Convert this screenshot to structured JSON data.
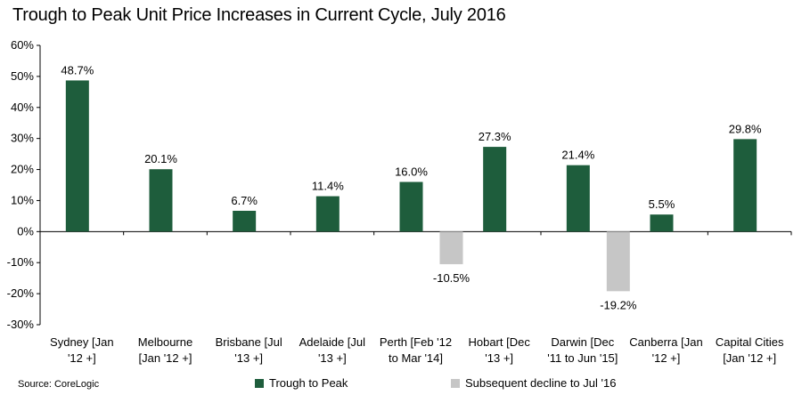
{
  "chart_data": {
    "type": "bar",
    "title": "Trough to Peak Unit Price Increases in Current Cycle, July 2016",
    "categories": [
      [
        "Sydney [Jan",
        "'12 +]"
      ],
      [
        "Melbourne",
        "[Jan '12 +]"
      ],
      [
        "Brisbane [Jul",
        "'13 +]"
      ],
      [
        "Adelaide [Jul",
        "'13 +]"
      ],
      [
        "Perth [Feb '12",
        "to Mar '14]"
      ],
      [
        "Hobart [Dec",
        "'13 +]"
      ],
      [
        "Darwin [Dec",
        "'11 to Jun '15]"
      ],
      [
        "Canberra [Jan",
        "'12 +]"
      ],
      [
        "Capital Cities",
        "[Jan '12 +]"
      ]
    ],
    "series": [
      {
        "name": "Trough to Peak",
        "color": "#1e5d3c",
        "values": [
          48.7,
          20.1,
          6.7,
          11.4,
          16.0,
          27.3,
          21.4,
          5.5,
          29.8
        ],
        "labels": [
          "48.7%",
          "20.1%",
          "6.7%",
          "11.4%",
          "16.0%",
          "27.3%",
          "21.4%",
          "5.5%",
          "29.8%"
        ]
      },
      {
        "name": "Subsequent decline to Jul '16",
        "color": "#c6c6c6",
        "values": [
          null,
          null,
          null,
          null,
          -10.5,
          null,
          -19.2,
          null,
          null
        ],
        "labels": [
          null,
          null,
          null,
          null,
          "-10.5%",
          null,
          "-19.2%",
          null,
          null
        ]
      }
    ],
    "ylim": [
      -30,
      60
    ],
    "yticks": [
      60,
      50,
      40,
      30,
      20,
      10,
      0,
      -10,
      -20,
      -30
    ],
    "ytick_labels": [
      "60%",
      "50%",
      "40%",
      "30%",
      "20%",
      "10%",
      "0%",
      "-10%",
      "-20%",
      "-30%"
    ],
    "legend_placement": "bottom",
    "grid": false
  },
  "source": "Source: CoreLogic"
}
